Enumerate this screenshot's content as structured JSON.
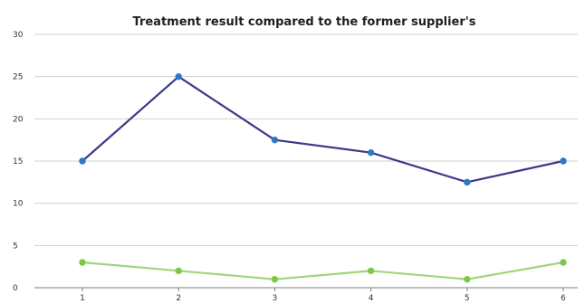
{
  "chart_data": {
    "type": "line",
    "title": "Treatment result compared to the former supplier's",
    "xlabel": "",
    "ylabel": "",
    "categories": [
      "1",
      "2",
      "3",
      "4",
      "5",
      "6"
    ],
    "ylim": [
      0,
      30
    ],
    "yticks": [
      "0",
      "5",
      "10",
      "15",
      "20",
      "25",
      "30"
    ],
    "grid": true,
    "legend": "none",
    "series": [
      {
        "values": [
          15,
          25,
          17.5,
          16,
          12.5,
          15
        ],
        "color": "#3a3a8a",
        "marker_color": "#2f77c6"
      },
      {
        "values": [
          3,
          2,
          1,
          2,
          1,
          3
        ],
        "color": "#9fd67a",
        "marker_color": "#7cc84a"
      }
    ]
  }
}
